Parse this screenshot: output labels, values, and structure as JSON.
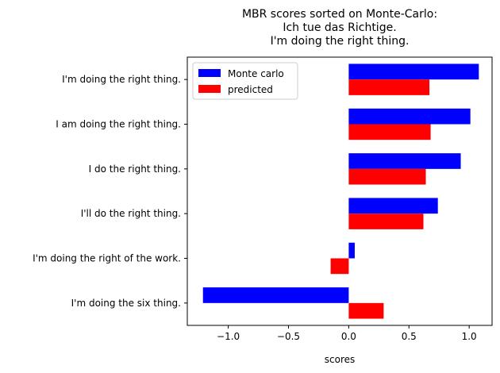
{
  "chart_data": {
    "type": "bar",
    "orientation": "horizontal",
    "title_lines": [
      "MBR scores sorted on Monte-Carlo:",
      "Ich tue das Richtige.",
      "I'm doing the right thing."
    ],
    "xlabel": "scores",
    "ylabel": "",
    "xlim": [
      -1.34,
      1.19
    ],
    "xticks": [
      -1.0,
      -0.5,
      0.0,
      0.5,
      1.0
    ],
    "xtick_labels": [
      "−1.0",
      "−0.5",
      "0.0",
      "0.5",
      "1.0"
    ],
    "grid": false,
    "legend_position": "top-left",
    "categories": [
      "I'm doing the right thing.",
      "I am doing the right thing.",
      "I do the right thing.",
      "I'll do the right thing.",
      "I'm doing the right of the work.",
      "I'm doing the six thing."
    ],
    "series": [
      {
        "name": "Monte carlo",
        "color": "#0000ff",
        "values": [
          1.08,
          1.01,
          0.93,
          0.74,
          0.05,
          -1.21
        ]
      },
      {
        "name": "predicted",
        "color": "#ff0000",
        "values": [
          0.67,
          0.68,
          0.64,
          0.62,
          -0.15,
          0.29
        ]
      }
    ]
  }
}
